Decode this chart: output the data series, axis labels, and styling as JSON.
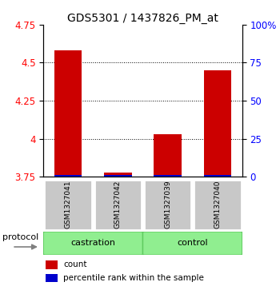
{
  "title": "GDS5301 / 1437826_PM_at",
  "samples": [
    "GSM1327041",
    "GSM1327042",
    "GSM1327039",
    "GSM1327040"
  ],
  "red_values": [
    4.58,
    3.78,
    4.03,
    4.45
  ],
  "ylim_left": [
    3.75,
    4.75
  ],
  "ylim_right": [
    0,
    100
  ],
  "yticks_left": [
    3.75,
    4.0,
    4.25,
    4.5,
    4.75
  ],
  "ytick_labels_left": [
    "3.75",
    "4",
    "4.25",
    "4.5",
    "4.75"
  ],
  "yticks_right": [
    0,
    25,
    50,
    75,
    100
  ],
  "ytick_labels_right": [
    "0",
    "25",
    "50",
    "75",
    "100%"
  ],
  "grid_values": [
    4.0,
    4.25,
    4.5
  ],
  "red_color": "#CC0000",
  "blue_color": "#0000CC",
  "sample_box_color": "#C8C8C8",
  "group_color": "#90EE90",
  "group_edge_color": "#60CC60",
  "title_fontsize": 10,
  "tick_fontsize": 8.5,
  "bar_width": 0.55,
  "baseline": 3.75,
  "castration_label": "castration",
  "control_label": "control",
  "protocol_label": "protocol",
  "legend_red_label": "count",
  "legend_blue_label": "percentile rank within the sample"
}
